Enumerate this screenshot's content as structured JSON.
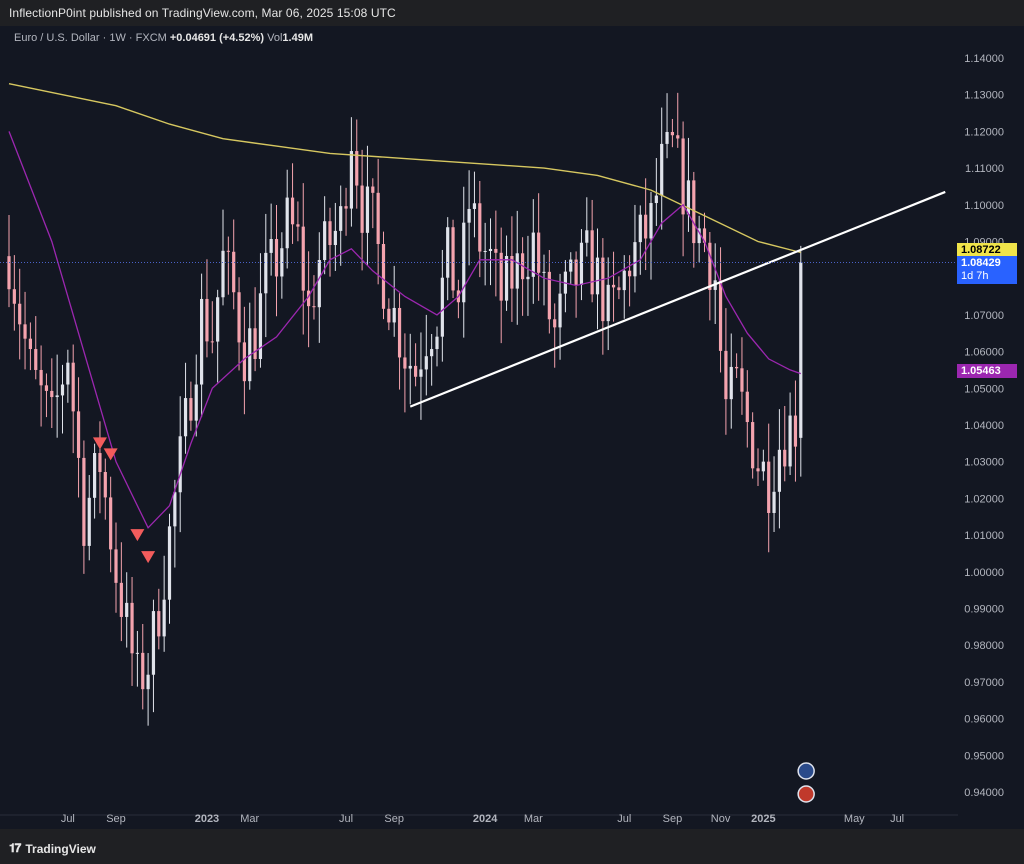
{
  "header": {
    "published_text": "InflectionP0int published on TradingView.com, Mar 06, 2025 15:08 UTC"
  },
  "legend": {
    "symbol": "Euro / U.S. Dollar · 1W · FXCM",
    "change": "+0.04691 (+4.52%)",
    "vol_label": "Vol",
    "vol_value": "1.49M"
  },
  "footer": {
    "brand": "TradingView",
    "logo_icon": "tradingview-logo-icon"
  },
  "colors": {
    "background": "#131722",
    "up_candle": "#e0e3eb",
    "down_candle": "#f4a3ae",
    "ma_long": "#d6c760",
    "ma_short": "#9c27b0",
    "trendline": "#ffffff",
    "arrow": "#f25c5c",
    "badge_ma_long": "#f0e44a",
    "badge_price": "#2962ff",
    "badge_ma_short": "#9c27b0"
  },
  "chart_data": {
    "type": "candlestick",
    "y_ticks": [
      "1.14000",
      "1.13000",
      "1.12000",
      "1.11000",
      "1.10000",
      "1.09000",
      "1.08000",
      "1.07000",
      "1.06000",
      "1.05000",
      "1.04000",
      "1.03000",
      "1.02000",
      "1.01000",
      "1.00000",
      "0.99000",
      "0.98000",
      "0.97000",
      "0.96000",
      "0.95000",
      "0.94000"
    ],
    "ylim": [
      0.935,
      1.145
    ],
    "x_ticks": [
      {
        "label": "Jul",
        "week": 11
      },
      {
        "label": "Sep",
        "week": 20
      },
      {
        "label": "2023",
        "week": 37
      },
      {
        "label": "Mar",
        "week": 45
      },
      {
        "label": "Jul",
        "week": 63
      },
      {
        "label": "Sep",
        "week": 72
      },
      {
        "label": "2024",
        "week": 89
      },
      {
        "label": "Mar",
        "week": 98
      },
      {
        "label": "Jul",
        "week": 115
      },
      {
        "label": "Sep",
        "week": 124
      },
      {
        "label": "Nov",
        "week": 133
      },
      {
        "label": "2025",
        "week": 141
      },
      {
        "label": "May",
        "week": 158
      },
      {
        "label": "Jul",
        "week": 166
      }
    ],
    "close_path": [
      [
        0,
        1.086
      ],
      [
        4,
        1.055
      ],
      [
        8,
        1.04
      ],
      [
        11,
        1.06
      ],
      [
        14,
        1.015
      ],
      [
        17,
        1.03
      ],
      [
        20,
        1.0
      ],
      [
        22,
        0.985
      ],
      [
        24,
        0.97
      ],
      [
        26,
        0.975
      ],
      [
        28,
        0.99
      ],
      [
        30,
        1.01
      ],
      [
        32,
        1.03
      ],
      [
        34,
        1.05
      ],
      [
        36,
        1.07
      ],
      [
        38,
        1.065
      ],
      [
        40,
        1.085
      ],
      [
        42,
        1.075
      ],
      [
        44,
        1.06
      ],
      [
        46,
        1.065
      ],
      [
        48,
        1.08
      ],
      [
        50,
        1.085
      ],
      [
        52,
        1.095
      ],
      [
        54,
        1.09
      ],
      [
        56,
        1.07
      ],
      [
        58,
        1.085
      ],
      [
        60,
        1.09
      ],
      [
        62,
        1.095
      ],
      [
        64,
        1.12
      ],
      [
        66,
        1.1
      ],
      [
        68,
        1.095
      ],
      [
        70,
        1.08
      ],
      [
        72,
        1.07
      ],
      [
        74,
        1.06
      ],
      [
        76,
        1.055
      ],
      [
        78,
        1.065
      ],
      [
        80,
        1.07
      ],
      [
        82,
        1.085
      ],
      [
        84,
        1.075
      ],
      [
        86,
        1.1
      ],
      [
        88,
        1.09
      ],
      [
        90,
        1.085
      ],
      [
        92,
        1.075
      ],
      [
        94,
        1.08
      ],
      [
        96,
        1.085
      ],
      [
        98,
        1.09
      ],
      [
        100,
        1.075
      ],
      [
        102,
        1.065
      ],
      [
        104,
        1.075
      ],
      [
        106,
        1.08
      ],
      [
        108,
        1.085
      ],
      [
        110,
        1.08
      ],
      [
        112,
        1.07
      ],
      [
        114,
        1.075
      ],
      [
        116,
        1.085
      ],
      [
        118,
        1.09
      ],
      [
        120,
        1.095
      ],
      [
        122,
        1.11
      ],
      [
        124,
        1.115
      ],
      [
        126,
        1.105
      ],
      [
        128,
        1.095
      ],
      [
        130,
        1.09
      ],
      [
        132,
        1.08
      ],
      [
        133,
        1.06
      ],
      [
        134,
        1.045
      ],
      [
        136,
        1.05
      ],
      [
        138,
        1.04
      ],
      [
        140,
        1.03
      ],
      [
        142,
        1.025
      ],
      [
        144,
        1.035
      ],
      [
        146,
        1.04
      ],
      [
        147,
        1.04
      ],
      [
        148,
        1.085
      ]
    ],
    "ma_long": [
      [
        0,
        1.133
      ],
      [
        10,
        1.13
      ],
      [
        20,
        1.127
      ],
      [
        30,
        1.122
      ],
      [
        40,
        1.118
      ],
      [
        50,
        1.116
      ],
      [
        60,
        1.114
      ],
      [
        70,
        1.113
      ],
      [
        80,
        1.112
      ],
      [
        90,
        1.111
      ],
      [
        100,
        1.11
      ],
      [
        110,
        1.108
      ],
      [
        120,
        1.104
      ],
      [
        130,
        1.097
      ],
      [
        140,
        1.09
      ],
      [
        148,
        1.087
      ]
    ],
    "ma_short": [
      [
        0,
        1.12
      ],
      [
        8,
        1.09
      ],
      [
        14,
        1.06
      ],
      [
        20,
        1.03
      ],
      [
        26,
        1.012
      ],
      [
        30,
        1.018
      ],
      [
        34,
        1.035
      ],
      [
        38,
        1.05
      ],
      [
        44,
        1.058
      ],
      [
        50,
        1.064
      ],
      [
        56,
        1.075
      ],
      [
        60,
        1.085
      ],
      [
        64,
        1.088
      ],
      [
        68,
        1.082
      ],
      [
        74,
        1.075
      ],
      [
        80,
        1.07
      ],
      [
        84,
        1.075
      ],
      [
        88,
        1.085
      ],
      [
        94,
        1.085
      ],
      [
        100,
        1.08
      ],
      [
        106,
        1.078
      ],
      [
        112,
        1.08
      ],
      [
        118,
        1.085
      ],
      [
        122,
        1.095
      ],
      [
        126,
        1.1
      ],
      [
        130,
        1.09
      ],
      [
        134,
        1.075
      ],
      [
        138,
        1.065
      ],
      [
        142,
        1.058
      ],
      [
        146,
        1.055
      ],
      [
        148,
        1.054
      ]
    ],
    "trendline": [
      [
        75,
        1.045
      ],
      [
        175,
        1.1035
      ]
    ],
    "arrows": [
      [
        17,
        1.035
      ],
      [
        19,
        1.032
      ],
      [
        24,
        1.01
      ],
      [
        26,
        1.004
      ]
    ],
    "badges": [
      {
        "text": "1.08722",
        "value": 1.08722,
        "kind": "ma_long"
      },
      {
        "text": "1.08429",
        "sub": "1d 7h",
        "value": 1.08429,
        "kind": "price"
      },
      {
        "text": "1.05463",
        "value": 1.05463,
        "kind": "ma_short"
      }
    ]
  }
}
